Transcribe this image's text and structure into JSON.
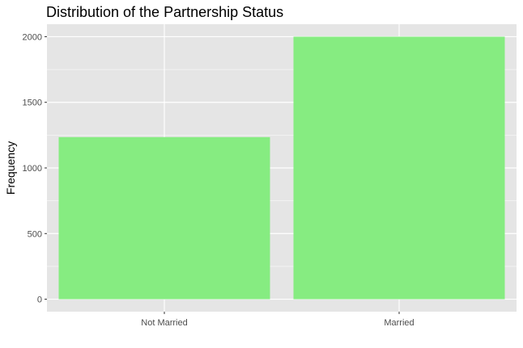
{
  "chart_data": {
    "type": "bar",
    "title": "Distribution of the Partnership Status",
    "xlabel": "",
    "ylabel": "Frequency",
    "categories": [
      "Not Married",
      "Married"
    ],
    "values": [
      1235,
      2000
    ],
    "ylim": [
      -95,
      2095
    ],
    "yticks": [
      0,
      500,
      1000,
      1500,
      2000
    ],
    "grid": true,
    "legend": "none",
    "colors": {
      "bar_fill": "#86ec81",
      "panel_background": "#e5e5e5",
      "grid_major": "#ffffff",
      "tick_label": "#4d4d4d",
      "tick_mark": "#333333"
    }
  }
}
